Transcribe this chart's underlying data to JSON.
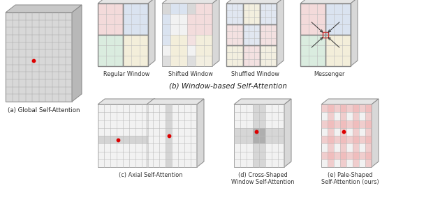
{
  "bg_color": "#ffffff",
  "window_colors": {
    "pink": "#f5c8c8",
    "blue": "#c8d8f0",
    "yellow": "#f5ecc8",
    "green": "#c8e8d0",
    "lightpink": "#f8e0e0"
  },
  "panel_titles": {
    "a": "(a) Global Self-Attention",
    "b": "(b) Window-based Self-Attention",
    "b1": "Regular Window",
    "b2": "Shifted Window",
    "b3": "Shuffled Window",
    "b4": "Messenger",
    "c": "(c) Axial Self-Attention",
    "d": "(d) Cross-Shaped\nWindow Self-Attention",
    "e": "(e) Pale-Shaped\nSelf-Attention (ours)"
  },
  "font_size_sub": 6.2,
  "font_size_label": 7.5
}
